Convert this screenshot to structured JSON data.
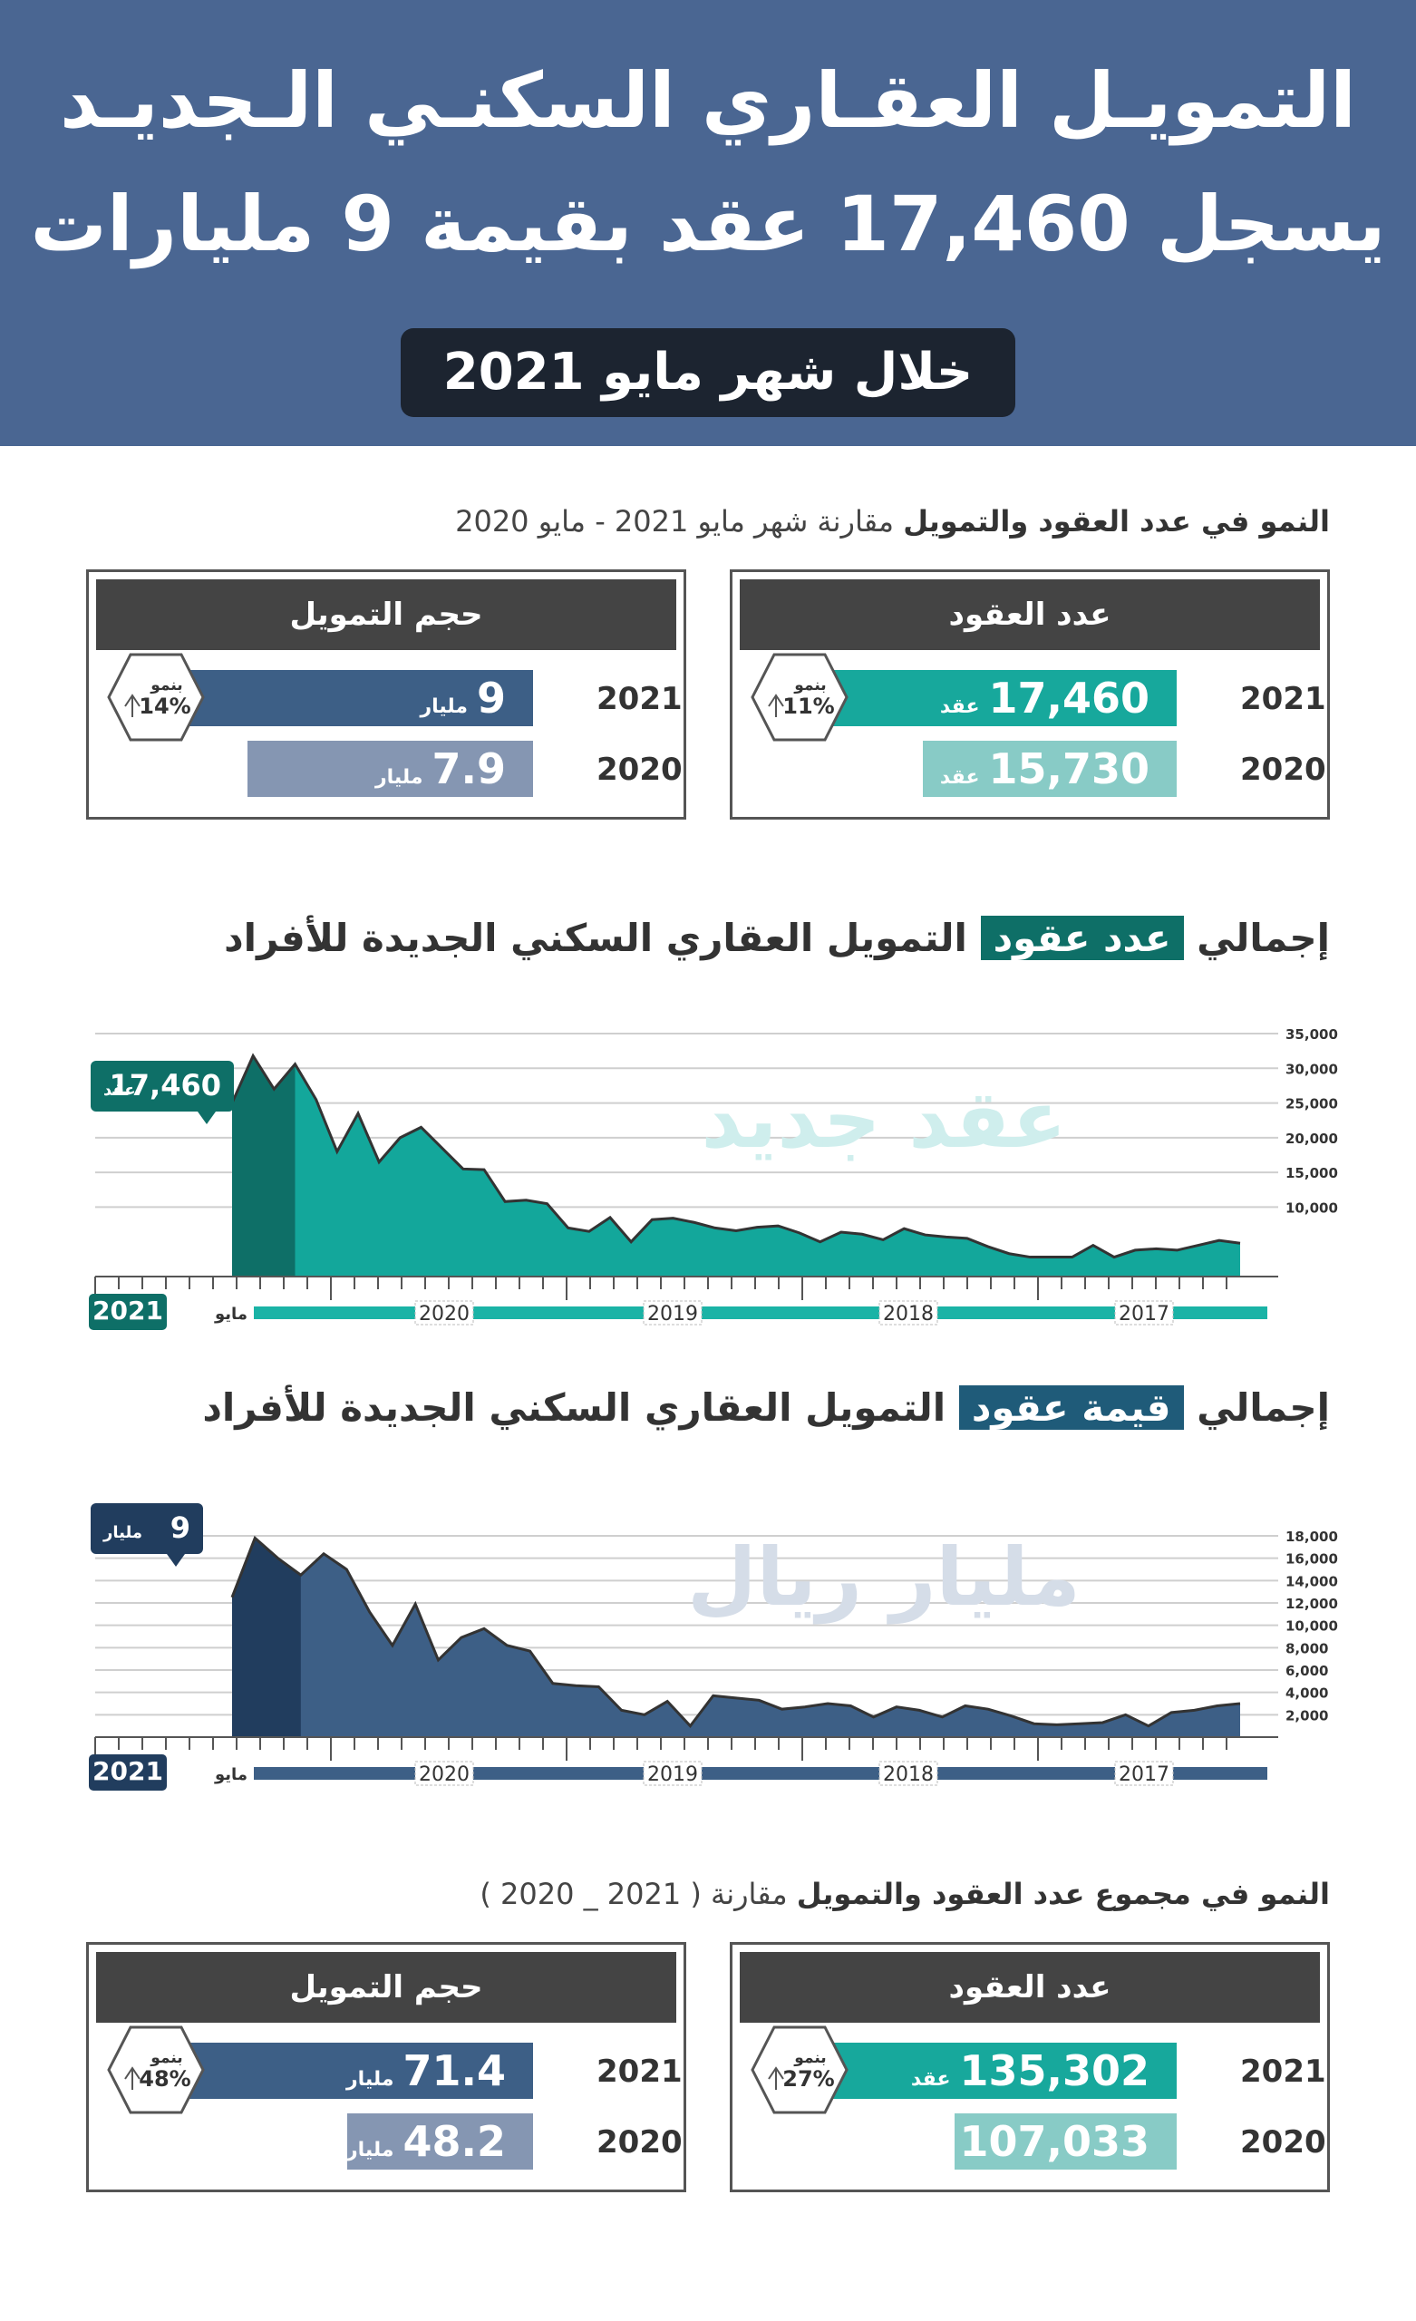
{
  "header": {
    "line1": "التمويـل العقـاري السكنـي الـجديـد",
    "line2": "يسجل 17,460 عقد بقيمة 9 مليارات",
    "pill": "خلال شهر مايو 2021"
  },
  "growth_section": {
    "title_bold": "النمو في عدد العقود والتمويل",
    "title_rest": "مقارنة شهر مايو 2021 - مايو 2020"
  },
  "total_section": {
    "title_bold": "النمو في مجموع عدد العقود والتمويل",
    "title_rest": "مقارنة ( 2021 _ 2020 )"
  },
  "cards_month": {
    "contracts": {
      "head": "عدد العقود",
      "growth_label": "بنمو",
      "growth_value": "11%",
      "rows": [
        {
          "year": "2021",
          "value": "17,460",
          "unit": "عقد"
        },
        {
          "year": "2020",
          "value": "15,730",
          "unit": "عقد"
        }
      ]
    },
    "financing": {
      "head": "حجم التمويل",
      "growth_label": "بنمو",
      "growth_value": "14%",
      "rows": [
        {
          "year": "2021",
          "value": "9",
          "unit": "مليار"
        },
        {
          "year": "2020",
          "value": "7.9",
          "unit": "مليار"
        }
      ]
    }
  },
  "cards_total": {
    "contracts": {
      "head": "عدد العقود",
      "growth_label": "بنمو",
      "growth_value": "27%",
      "rows": [
        {
          "year": "2021",
          "value": "135,302",
          "unit": "عقد"
        },
        {
          "year": "2020",
          "value": "107,033",
          "unit": "عقد"
        }
      ]
    },
    "financing": {
      "head": "حجم التمويل",
      "growth_label": "بنمو",
      "growth_value": "48%",
      "rows": [
        {
          "year": "2021",
          "value": "71.4",
          "unit": "مليار"
        },
        {
          "year": "2020",
          "value": "48.2",
          "unit": "مليار"
        }
      ]
    }
  },
  "chart1": {
    "title_pre": "إجمالي",
    "title_hl": "عدد عقود",
    "title_post": "التمويل العقاري السكني الجديدة للأفراد",
    "watermark": "عقد جديد",
    "badge_value": "17,460",
    "badge_unit": "عقد",
    "year_badge": "2021",
    "month_label": "مايو",
    "colors": {
      "main": "#13a79b",
      "dark": "#0e6f67",
      "timeline": "#1ab3a6",
      "hl": "#0e6f67",
      "watermark": "#cfeeed"
    }
  },
  "chart2": {
    "title_pre": "إجمالي",
    "title_hl": "قيمة عقود",
    "title_post": "التمويل العقاري السكني الجديدة للأفراد",
    "watermark": "مليار ريال",
    "badge_value": "9",
    "badge_unit": "مليار",
    "year_badge": "2021",
    "month_label": "مايو",
    "colors": {
      "main": "#3d5f86",
      "dark": "#213d5e",
      "timeline": "#3d5f86",
      "hl": "#1f5b79",
      "watermark": "#d5dde8"
    }
  },
  "colors": {
    "header_bg": "#4a6692",
    "pill_bg": "#1c2430",
    "contracts_2021": "#17a89c",
    "contracts_2020": "#88cbc6",
    "financing_2021": "#3d5f86",
    "financing_2020": "#8596b2",
    "card_head": "#444444"
  },
  "chart_data": [
    {
      "type": "area",
      "title": "إجمالي عدد عقود التمويل العقاري السكني الجديدة للأفراد",
      "ylim": [
        0,
        35000
      ],
      "yticks": [
        "35,000",
        "30,000",
        "25,000",
        "20,000",
        "15,000",
        "10,000"
      ],
      "x_labels": [
        "مايو",
        "2020",
        "2019",
        "2018",
        "2017"
      ],
      "highlight": {
        "month": "مايو 2021",
        "value": 17460
      },
      "series": [
        {
          "values": [
            25000,
            31800,
            27000,
            30600,
            25500,
            18000,
            23500,
            16500,
            20000,
            21500,
            18500,
            15500,
            15400,
            10800,
            11000,
            10500,
            7000,
            6500,
            8500,
            5000,
            8200,
            8400,
            7800,
            7000,
            6600,
            7100,
            7300,
            6300,
            5000,
            6400,
            6100,
            5300,
            6900,
            6000,
            5700,
            5500,
            4300,
            3300,
            2800,
            2800,
            2800,
            4500,
            2800,
            3800,
            4000,
            3800,
            4500,
            5200,
            4800
          ]
        }
      ]
    },
    {
      "type": "area",
      "title": "إجمالي قيمة عقود التمويل العقاري السكني الجديدة للأفراد",
      "ylim": [
        0,
        18000
      ],
      "yticks": [
        "18,000",
        "16,000",
        "14,000",
        "12,000",
        "10,000",
        "8,000",
        "6,000",
        "4,000",
        "2,000"
      ],
      "x_labels": [
        "مايو",
        "2020",
        "2019",
        "2018",
        "2017"
      ],
      "highlight": {
        "month": "مايو 2021",
        "unit": "مليار",
        "value": 9
      },
      "series": [
        {
          "values": [
            12500,
            17800,
            16000,
            14500,
            16400,
            15000,
            11200,
            8200,
            11900,
            6900,
            8900,
            9700,
            8200,
            7700,
            4800,
            4600,
            4500,
            2400,
            2000,
            3200,
            1000,
            3700,
            3500,
            3300,
            2500,
            2700,
            3000,
            2800,
            1800,
            2700,
            2400,
            1800,
            2800,
            2500,
            1900,
            1200,
            1100,
            1200,
            1300,
            2000,
            1000,
            2200,
            2400,
            2800,
            3000
          ]
        }
      ]
    }
  ]
}
